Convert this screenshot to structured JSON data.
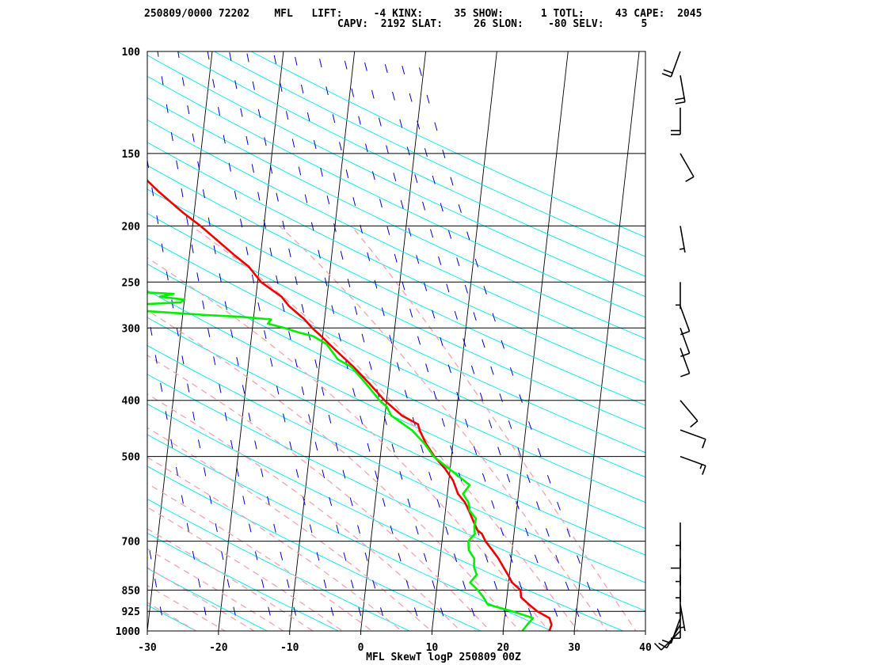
{
  "header": {
    "line1": "250809/0000 72202    MFL   LIFT:     -4 KINX:     35 SHOW:      1 TOTL:     43 CAPE:  2045",
    "line2": "CAPV:  2192 SLAT:     26 SLON:    -80 SELV:      5"
  },
  "chart_data": {
    "type": "line",
    "title": "MFL SkewT logP 250809 00Z",
    "xlabel": "",
    "ylabel": "",
    "xlim": [
      -30,
      40
    ],
    "ylim": [
      1000,
      100
    ],
    "y_scale": "log",
    "x_ticks": [
      "-30",
      "-20",
      "-10",
      "0",
      "10",
      "20",
      "30",
      "40"
    ],
    "y_ticks": [
      "100",
      "150",
      "200",
      "250",
      "300",
      "400",
      "500",
      "700",
      "850",
      "925",
      "1000"
    ],
    "colors": {
      "temperature": "#ee0000",
      "dewpoint": "#00ee00",
      "isotherm": "#000000",
      "dry_adiabat": "#00e5ee",
      "moist_adiabat": "#f5a3ae",
      "mixing_ratio": "#0000cc"
    },
    "series": [
      {
        "name": "temperature",
        "points": [
          [
            1000,
            26.5
          ],
          [
            975,
            26.7
          ],
          [
            950,
            26.3
          ],
          [
            925,
            24.5
          ],
          [
            900,
            23.2
          ],
          [
            875,
            22.0
          ],
          [
            850,
            21.8
          ],
          [
            825,
            20.5
          ],
          [
            800,
            19.8
          ],
          [
            775,
            19.0
          ],
          [
            750,
            18.2
          ],
          [
            725,
            17.2
          ],
          [
            700,
            16.1
          ],
          [
            680,
            15.5
          ],
          [
            670,
            14.8
          ],
          [
            660,
            14.5
          ],
          [
            650,
            14.2
          ],
          [
            620,
            13.3
          ],
          [
            600,
            12.6
          ],
          [
            580,
            11.5
          ],
          [
            550,
            10.6
          ],
          [
            525,
            9.3
          ],
          [
            500,
            7.6
          ],
          [
            475,
            6.2
          ],
          [
            450,
            5.1
          ],
          [
            440,
            4.8
          ],
          [
            425,
            2.4
          ],
          [
            400,
            -0.3
          ],
          [
            375,
            -2.6
          ],
          [
            350,
            -5.2
          ],
          [
            325,
            -8.3
          ],
          [
            310,
            -10.2
          ],
          [
            300,
            -11.6
          ],
          [
            290,
            -12.8
          ],
          [
            275,
            -15.2
          ],
          [
            265,
            -16.4
          ],
          [
            250,
            -19.5
          ],
          [
            235,
            -21.5
          ],
          [
            225,
            -23.6
          ],
          [
            210,
            -26.7
          ],
          [
            200,
            -28.9
          ],
          [
            190,
            -31.5
          ],
          [
            175,
            -35.2
          ],
          [
            165,
            -37.6
          ],
          [
            150,
            -42.3
          ],
          [
            140,
            -43.7
          ],
          [
            135,
            -44.7
          ],
          [
            130,
            -47.3
          ],
          [
            125,
            -49.2
          ],
          [
            115,
            -53.4
          ],
          [
            111,
            -55.6
          ],
          [
            105,
            -58.1
          ],
          [
            100,
            -60.6
          ]
        ]
      },
      {
        "name": "dewpoint",
        "points": [
          [
            1000,
            22.7
          ],
          [
            975,
            23.3
          ],
          [
            950,
            24.0
          ],
          [
            925,
            21.0
          ],
          [
            900,
            17.4
          ],
          [
            875,
            16.7
          ],
          [
            850,
            15.8
          ],
          [
            825,
            14.6
          ],
          [
            800,
            15.4
          ],
          [
            775,
            14.9
          ],
          [
            750,
            14.8
          ],
          [
            725,
            13.9
          ],
          [
            700,
            13.7
          ],
          [
            680,
            14.5
          ],
          [
            660,
            14.3
          ],
          [
            640,
            14.4
          ],
          [
            620,
            13.4
          ],
          [
            600,
            13.1
          ],
          [
            580,
            12.2
          ],
          [
            575,
            12.4
          ],
          [
            560,
            13.0
          ],
          [
            500,
            7.5
          ],
          [
            475,
            6.0
          ],
          [
            450,
            4.0
          ],
          [
            425,
            0.9
          ],
          [
            410,
            0.1
          ],
          [
            400,
            -1.0
          ],
          [
            375,
            -3.1
          ],
          [
            350,
            -5.5
          ],
          [
            340,
            -7.5
          ],
          [
            320,
            -9.3
          ],
          [
            310,
            -11.3
          ],
          [
            305,
            -13.6
          ],
          [
            300,
            -15.5
          ],
          [
            295,
            -17.9
          ],
          [
            290,
            -17.5
          ],
          [
            287,
            -21.8
          ],
          [
            285,
            -26.8
          ],
          [
            277,
            -42.1
          ],
          [
            275,
            -40.5
          ],
          [
            271,
            -30.5
          ],
          [
            268,
            -30.0
          ],
          [
            265,
            -33.5
          ],
          [
            262,
            -31.6
          ],
          [
            260,
            -36.6
          ],
          [
            258,
            -37.0
          ],
          [
            255,
            -41.0
          ],
          [
            250,
            -49.0
          ],
          [
            245,
            -39.0
          ],
          [
            225,
            -45.5
          ],
          [
            220,
            -44.1
          ],
          [
            210,
            -48.0
          ],
          [
            205,
            -46.0
          ],
          [
            200,
            -48.0
          ],
          [
            195,
            -48.2
          ],
          [
            190,
            -49.5
          ],
          [
            180,
            -53.2
          ],
          [
            175,
            -54.0
          ],
          [
            165,
            -57.4
          ],
          [
            160,
            -58.0
          ],
          [
            150,
            -61.8
          ],
          [
            145,
            -62.3
          ],
          [
            135,
            -65.8
          ],
          [
            125,
            -69.3
          ],
          [
            120,
            -70.6
          ],
          [
            112,
            -74.3
          ],
          [
            105,
            -75.8
          ],
          [
            100,
            -76.5
          ]
        ]
      }
    ],
    "wind_barbs": [
      {
        "p": 1000,
        "dir": 225,
        "kt": 10
      },
      {
        "p": 975,
        "dir": 210,
        "kt": 10
      },
      {
        "p": 950,
        "dir": 200,
        "kt": 10
      },
      {
        "p": 925,
        "dir": 180,
        "kt": 10
      },
      {
        "p": 900,
        "dir": 170,
        "kt": 5
      },
      {
        "p": 850,
        "dir": 180,
        "kt": 5
      },
      {
        "p": 800,
        "dir": 180,
        "kt": 5
      },
      {
        "p": 750,
        "dir": 180,
        "kt": 5
      },
      {
        "p": 700,
        "dir": 180,
        "kt": 10
      },
      {
        "p": 650,
        "dir": 180,
        "kt": 5
      },
      {
        "p": 500,
        "dir": 110,
        "kt": 15
      },
      {
        "p": 450,
        "dir": 110,
        "kt": 10
      },
      {
        "p": 400,
        "dir": 140,
        "kt": 10
      },
      {
        "p": 325,
        "dir": 160,
        "kt": 10
      },
      {
        "p": 300,
        "dir": 160,
        "kt": 10
      },
      {
        "p": 275,
        "dir": 160,
        "kt": 10
      },
      {
        "p": 250,
        "dir": 180,
        "kt": 5
      },
      {
        "p": 200,
        "dir": 170,
        "kt": 5
      },
      {
        "p": 150,
        "dir": 150,
        "kt": 10
      },
      {
        "p": 125,
        "dir": 180,
        "kt": 20
      },
      {
        "p": 110,
        "dir": 170,
        "kt": 20
      },
      {
        "p": 100,
        "dir": 200,
        "kt": 20
      }
    ]
  }
}
